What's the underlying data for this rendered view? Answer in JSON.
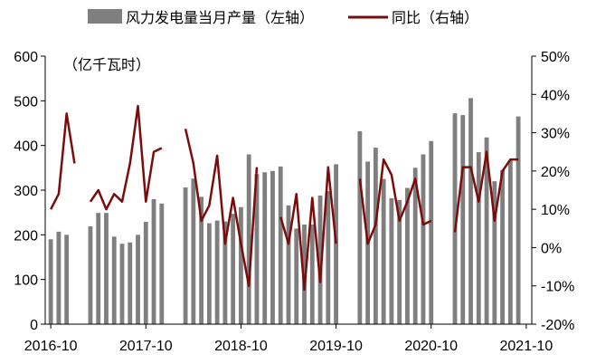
{
  "chart_data": {
    "type": "bar+line",
    "legend": {
      "bar_label": "风力发电量当月产量（左轴）",
      "line_label": "同比（右轴）",
      "placement": "top"
    },
    "unit_label": "（亿千瓦时）",
    "x_tick_labels": [
      "2016-10",
      "2017-10",
      "2018-10",
      "2019-10",
      "2020-10",
      "2021-10"
    ],
    "x_tick_index": [
      0,
      12,
      24,
      36,
      48,
      60
    ],
    "y_left": {
      "ylim": [
        0,
        600
      ],
      "ticks": [
        "0",
        "100",
        "200",
        "300",
        "400",
        "500",
        "600"
      ]
    },
    "y_right": {
      "ylim": [
        -20,
        50
      ],
      "ticks": [
        "-20%",
        "-10%",
        "0%",
        "10%",
        "20%",
        "30%",
        "40%",
        "50%"
      ]
    },
    "months": 61,
    "series": [
      {
        "name": "风力发电量当月产量（左轴）",
        "kind": "bar",
        "axis": "left",
        "color": "#7f7f7f",
        "values": [
          190,
          207,
          200,
          null,
          null,
          219,
          249,
          249,
          196,
          180,
          183,
          200,
          229,
          280,
          270,
          null,
          null,
          306,
          326,
          285,
          226,
          232,
          230,
          247,
          262,
          380,
          336,
          340,
          343,
          353,
          266,
          214,
          223,
          223,
          288,
          298,
          358,
          null,
          null,
          432,
          364,
          395,
          325,
          282,
          278,
          305,
          350,
          380,
          410,
          null,
          null,
          472,
          468,
          506,
          385,
          418,
          320,
          345,
          367,
          465,
          null
        ]
      },
      {
        "name": "同比（右轴）",
        "kind": "line",
        "axis": "right",
        "color": "#7b0c0c",
        "values": [
          10,
          14,
          35,
          22,
          null,
          12,
          15,
          10,
          14,
          12,
          22,
          37,
          12,
          25,
          26,
          null,
          null,
          31,
          22,
          7,
          11,
          24,
          1,
          13,
          1,
          -10,
          21,
          null,
          null,
          8,
          1,
          14,
          -11,
          13,
          -9,
          21,
          1,
          null,
          null,
          18,
          1,
          6,
          23,
          19,
          7,
          12,
          18,
          6,
          7,
          null,
          null,
          4,
          21,
          21,
          12,
          25,
          7,
          20,
          23,
          23,
          null
        ]
      }
    ]
  }
}
